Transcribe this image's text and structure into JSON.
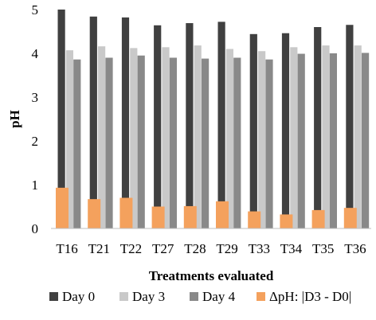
{
  "chart_data": {
    "type": "bar",
    "xlabel": "Treatments evaluated",
    "ylabel": "pH",
    "ylim": [
      0,
      5
    ],
    "yticks": [
      0,
      1,
      2,
      3,
      4,
      5
    ],
    "grid": false,
    "legend_position": "bottom",
    "categories": [
      "T16",
      "T21",
      "T22",
      "T27",
      "T28",
      "T29",
      "T33",
      "T34",
      "T35",
      "T36"
    ],
    "series": [
      {
        "name": "Day 0",
        "color": "#404040",
        "values": [
          5.0,
          4.84,
          4.82,
          4.64,
          4.69,
          4.72,
          4.44,
          4.46,
          4.6,
          4.65
        ]
      },
      {
        "name": "Day 3",
        "color": "#c9c9c9",
        "values": [
          4.07,
          4.16,
          4.12,
          4.14,
          4.18,
          4.1,
          4.05,
          4.14,
          4.18,
          4.18
        ]
      },
      {
        "name": "Day 4",
        "color": "#898989",
        "values": [
          3.86,
          3.9,
          3.95,
          3.9,
          3.88,
          3.9,
          3.86,
          3.99,
          4.0,
          4.01
        ]
      },
      {
        "name": "ΔpH: |D3 - D0|",
        "color": "#f4a15d",
        "values": [
          0.93,
          0.67,
          0.7,
          0.5,
          0.51,
          0.62,
          0.39,
          0.32,
          0.42,
          0.47
        ]
      }
    ]
  }
}
